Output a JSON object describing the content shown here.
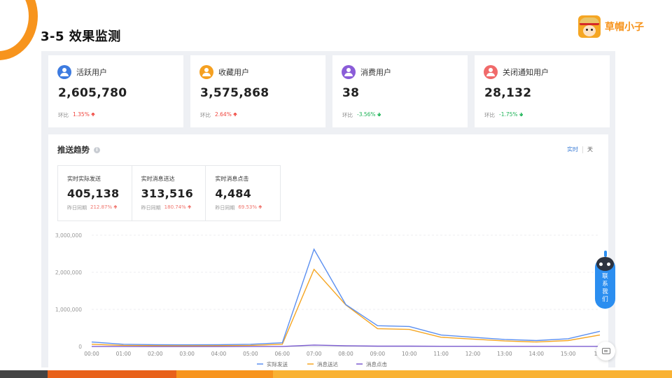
{
  "slide": {
    "title": "3-5 效果监测"
  },
  "brand": {
    "name": "草帽小子",
    "logo_icon": "straw-hat-boy-logo"
  },
  "kpis": [
    {
      "label": "活跃用户",
      "value": "2,605,780",
      "cmp_label": "环比",
      "cmp_value": "1.35%",
      "trend": "up",
      "icon_color": "#3d7be0"
    },
    {
      "label": "收藏用户",
      "value": "3,575,868",
      "cmp_label": "环比",
      "cmp_value": "2.64%",
      "trend": "up",
      "icon_color": "#f5a020"
    },
    {
      "label": "消费用户",
      "value": "38",
      "cmp_label": "环比",
      "cmp_value": "-3.56%",
      "trend": "down",
      "icon_color": "#8a5cd8"
    },
    {
      "label": "关闭通知用户",
      "value": "28,132",
      "cmp_label": "环比",
      "cmp_value": "-1.75%",
      "trend": "down",
      "icon_color": "#f06a6a"
    }
  ],
  "trend": {
    "title": "推送趋势",
    "toggle": {
      "realtime": "实时",
      "day": "天"
    },
    "realtime": [
      {
        "label": "实时实际发送",
        "value": "405,138",
        "cmp_label": "昨日同期",
        "cmp_value": "212.87%"
      },
      {
        "label": "实时消息送达",
        "value": "313,516",
        "cmp_label": "昨日同期",
        "cmp_value": "180.74%"
      },
      {
        "label": "实时消息点击",
        "value": "4,484",
        "cmp_label": "昨日同期",
        "cmp_value": "69.53%"
      }
    ]
  },
  "chart_data": {
    "type": "line",
    "x": [
      "00:00",
      "01:00",
      "02:00",
      "03:00",
      "04:00",
      "05:00",
      "06:00",
      "07:00",
      "08:00",
      "09:00",
      "10:00",
      "11:00",
      "12:00",
      "13:00",
      "14:00",
      "15:00",
      "16:00"
    ],
    "x_tick_labels": [
      "00:00",
      "01:00",
      "02:00",
      "03:00",
      "04:00",
      "05:00",
      "06:00",
      "07:00",
      "08:00",
      "09:00",
      "10:00",
      "11:00",
      "12:00",
      "13:00",
      "14:00",
      "15:00",
      "16:0"
    ],
    "y_tick_labels": [
      "3,000,000",
      "2,000,000",
      "1,000,000",
      "0"
    ],
    "ylim": [
      0,
      3000000
    ],
    "grid": true,
    "legend": "bottom",
    "series": [
      {
        "name": "实际发送",
        "color": "#5b8ff0",
        "values": [
          120000,
          60000,
          50000,
          45000,
          50000,
          60000,
          100000,
          2620000,
          1130000,
          560000,
          540000,
          310000,
          250000,
          190000,
          160000,
          210000,
          410000
        ]
      },
      {
        "name": "消息送达",
        "color": "#f5a623",
        "values": [
          60000,
          30000,
          25000,
          22000,
          25000,
          30000,
          60000,
          2080000,
          1120000,
          480000,
          460000,
          250000,
          200000,
          150000,
          120000,
          160000,
          310000
        ]
      },
      {
        "name": "消息点击",
        "color": "#7c5cd0",
        "values": [
          2000,
          1000,
          800,
          700,
          800,
          1000,
          2000,
          40000,
          20000,
          10000,
          9000,
          6000,
          5000,
          4000,
          3500,
          4000,
          4500
        ]
      }
    ]
  },
  "contact": {
    "label": [
      "联",
      "系",
      "我",
      "们"
    ]
  },
  "bottom_bar_colors": [
    "#444444",
    "#e8611a",
    "#f7941d",
    "#f9b233"
  ]
}
